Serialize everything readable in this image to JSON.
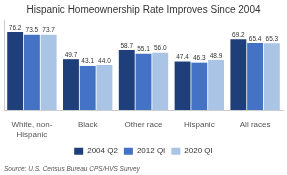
{
  "chart_data": {
    "type": "bar",
    "title": "Hispanic Homeownership Rate Improves Since 2004",
    "categories": [
      "White, non-\nHispanic",
      "Black",
      "Other race",
      "Hispanic",
      "All races"
    ],
    "series": [
      {
        "name": "2004 Q2",
        "color": "#1f3f7a",
        "values": [
          76.2,
          49.7,
          58.7,
          47.4,
          69.2
        ]
      },
      {
        "name": "2012 QI",
        "color": "#4472c4",
        "values": [
          73.5,
          43.1,
          55.1,
          46.3,
          65.4
        ]
      },
      {
        "name": "2020 QI",
        "color": "#a9c4e4",
        "values": [
          73.7,
          44.0,
          56.0,
          48.9,
          65.3
        ],
        "value_labels": [
          "73.7",
          "44.0",
          "56.0",
          "48.9",
          "65.3"
        ]
      }
    ],
    "ylim": [
      0,
      88
    ],
    "tick_labels": "x",
    "data_labels": true,
    "grid": false,
    "legend": "bottom",
    "annotations": [
      "Source: U.S. Census Bureau CPS/HVS Survey"
    ]
  }
}
